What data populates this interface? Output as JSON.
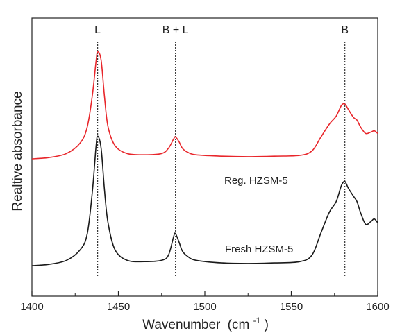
{
  "chart_data": {
    "type": "line",
    "xlabel": "Wavenumber",
    "xlabel_unit": "(cm",
    "xlabel_unit_sup": "-1",
    "xlabel_unit_close": ")",
    "ylabel": "Realtive absorbance",
    "xlim": [
      1400,
      1600
    ],
    "x_ticks": [
      1400,
      1450,
      1500,
      1550,
      1600
    ],
    "y_ticks_labeled": false,
    "grid": false,
    "legend": "none",
    "reference_lines": [
      {
        "label": "L",
        "x": 1438
      },
      {
        "label": "B + L",
        "x": 1483
      },
      {
        "label": "B",
        "x": 1581
      }
    ],
    "series": [
      {
        "name": "Reg. HZSM-5",
        "color": "#e8262b",
        "baseline": 0.4,
        "points": [
          [
            1400,
            0.4
          ],
          [
            1410,
            0.405
          ],
          [
            1420,
            0.42
          ],
          [
            1428,
            0.46
          ],
          [
            1432,
            0.52
          ],
          [
            1435,
            0.64
          ],
          [
            1437,
            0.76
          ],
          [
            1438,
            0.8
          ],
          [
            1440,
            0.77
          ],
          [
            1442,
            0.63
          ],
          [
            1444,
            0.52
          ],
          [
            1448,
            0.45
          ],
          [
            1455,
            0.42
          ],
          [
            1465,
            0.415
          ],
          [
            1475,
            0.42
          ],
          [
            1479,
            0.44
          ],
          [
            1482,
            0.475
          ],
          [
            1483,
            0.482
          ],
          [
            1485,
            0.465
          ],
          [
            1487,
            0.44
          ],
          [
            1490,
            0.425
          ],
          [
            1495,
            0.415
          ],
          [
            1510,
            0.41
          ],
          [
            1525,
            0.408
          ],
          [
            1540,
            0.41
          ],
          [
            1555,
            0.413
          ],
          [
            1562,
            0.43
          ],
          [
            1567,
            0.48
          ],
          [
            1572,
            0.53
          ],
          [
            1576,
            0.56
          ],
          [
            1579,
            0.6
          ],
          [
            1581,
            0.605
          ],
          [
            1583,
            0.585
          ],
          [
            1586,
            0.555
          ],
          [
            1588,
            0.545
          ],
          [
            1590,
            0.52
          ],
          [
            1593,
            0.495
          ],
          [
            1596,
            0.5
          ],
          [
            1598,
            0.505
          ],
          [
            1600,
            0.495
          ]
        ]
      },
      {
        "name": "Fresh HZSM-5",
        "color": "#1a1a1a",
        "baseline": 0.0,
        "points": [
          [
            1400,
            0.0
          ],
          [
            1410,
            0.005
          ],
          [
            1420,
            0.02
          ],
          [
            1428,
            0.06
          ],
          [
            1432,
            0.12
          ],
          [
            1435,
            0.28
          ],
          [
            1437,
            0.44
          ],
          [
            1438,
            0.485
          ],
          [
            1440,
            0.44
          ],
          [
            1442,
            0.28
          ],
          [
            1444,
            0.16
          ],
          [
            1448,
            0.06
          ],
          [
            1455,
            0.02
          ],
          [
            1465,
            0.015
          ],
          [
            1475,
            0.02
          ],
          [
            1479,
            0.04
          ],
          [
            1482,
            0.11
          ],
          [
            1483,
            0.12
          ],
          [
            1485,
            0.09
          ],
          [
            1487,
            0.055
          ],
          [
            1490,
            0.035
          ],
          [
            1495,
            0.02
          ],
          [
            1510,
            0.01
          ],
          [
            1525,
            0.008
          ],
          [
            1540,
            0.01
          ],
          [
            1555,
            0.015
          ],
          [
            1562,
            0.04
          ],
          [
            1567,
            0.12
          ],
          [
            1572,
            0.2
          ],
          [
            1576,
            0.24
          ],
          [
            1579,
            0.3
          ],
          [
            1581,
            0.315
          ],
          [
            1583,
            0.29
          ],
          [
            1586,
            0.26
          ],
          [
            1588,
            0.24
          ],
          [
            1590,
            0.2
          ],
          [
            1593,
            0.155
          ],
          [
            1596,
            0.165
          ],
          [
            1598,
            0.175
          ],
          [
            1600,
            0.16
          ]
        ]
      }
    ]
  }
}
